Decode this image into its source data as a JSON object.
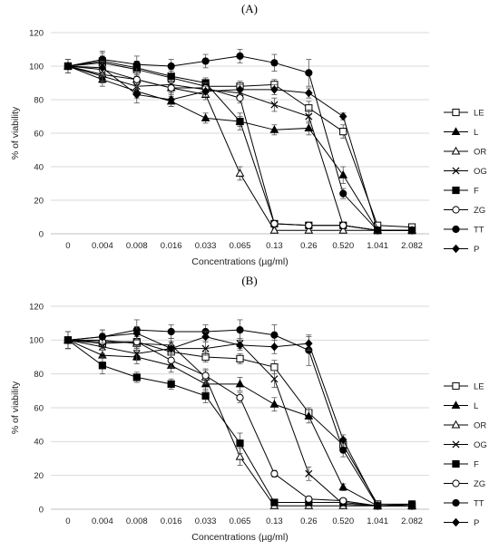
{
  "chart_data": [
    {
      "type": "line",
      "panel_label": "(A)",
      "xlabel": "Concentrations (µg/ml)",
      "ylabel": "% of viability",
      "categories": [
        "0",
        "0.004",
        "0.008",
        "0.016",
        "0.033",
        "0.065",
        "0.13",
        "0.26",
        "0.520",
        "1.041",
        "2.082"
      ],
      "ylim": [
        0,
        120
      ],
      "yticks": [
        0,
        20,
        40,
        60,
        80,
        100,
        120
      ],
      "grid": "horizontal",
      "legend": "right",
      "series": [
        {
          "name": "LE",
          "marker": "open-square",
          "values": [
            100,
            102,
            98,
            93,
            88,
            88,
            89,
            75,
            61,
            5,
            4
          ],
          "errors": [
            4,
            4,
            4,
            4,
            3,
            3,
            3,
            4,
            4,
            1,
            1
          ]
        },
        {
          "name": "L",
          "marker": "filled-triangle",
          "values": [
            100,
            92,
            85,
            79,
            69,
            67,
            62,
            63,
            35,
            2,
            2
          ],
          "errors": [
            4,
            4,
            4,
            3,
            3,
            3,
            3,
            4,
            5,
            1,
            1
          ]
        },
        {
          "name": "OR",
          "marker": "open-triangle",
          "values": [
            100,
            95,
            92,
            87,
            83,
            36,
            2,
            2,
            2,
            2,
            2
          ],
          "errors": [
            4,
            4,
            3,
            3,
            3,
            4,
            1,
            1,
            1,
            1,
            1
          ]
        },
        {
          "name": "OG",
          "marker": "x",
          "values": [
            100,
            94,
            88,
            89,
            86,
            84,
            77,
            70,
            5,
            2,
            2
          ],
          "errors": [
            4,
            4,
            4,
            4,
            3,
            3,
            4,
            4,
            1,
            1,
            1
          ]
        },
        {
          "name": "F",
          "marker": "filled-square",
          "values": [
            100,
            103,
            99,
            94,
            90,
            67,
            6,
            5,
            5,
            2,
            2
          ],
          "errors": [
            4,
            5,
            4,
            4,
            3,
            5,
            1,
            1,
            1,
            1,
            1
          ]
        },
        {
          "name": "ZG",
          "marker": "open-circle",
          "values": [
            100,
            98,
            92,
            87,
            87,
            81,
            6,
            5,
            5,
            2,
            2
          ],
          "errors": [
            4,
            4,
            4,
            4,
            3,
            3,
            1,
            1,
            1,
            1,
            1
          ]
        },
        {
          "name": "TT",
          "marker": "filled-circle",
          "values": [
            100,
            104,
            101,
            100,
            103,
            106,
            102,
            96,
            24,
            2,
            2
          ],
          "errors": [
            4,
            5,
            5,
            4,
            4,
            4,
            5,
            8,
            3,
            1,
            1
          ]
        },
        {
          "name": "P",
          "marker": "filled-diamond",
          "values": [
            100,
            99,
            83,
            80,
            85,
            86,
            86,
            84,
            70,
            2,
            2
          ],
          "errors": [
            4,
            4,
            5,
            4,
            3,
            3,
            3,
            3,
            2,
            1,
            1
          ]
        }
      ]
    },
    {
      "type": "line",
      "panel_label": "(B)",
      "xlabel": "Concentrations (µg/ml)",
      "ylabel": "% of viability",
      "categories": [
        "0",
        "0.004",
        "0.008",
        "0.016",
        "0.033",
        "0.065",
        "0.13",
        "0.26",
        "0.520",
        "1.041",
        "2.082"
      ],
      "ylim": [
        0,
        120
      ],
      "yticks": [
        0,
        20,
        40,
        60,
        80,
        100,
        120
      ],
      "grid": "horizontal",
      "legend": "right",
      "series": [
        {
          "name": "LE",
          "marker": "open-square",
          "values": [
            100,
            98,
            99,
            93,
            90,
            89,
            84,
            57,
            38,
            3,
            3
          ],
          "errors": [
            5,
            4,
            4,
            4,
            3,
            3,
            4,
            3,
            4,
            1,
            1
          ]
        },
        {
          "name": "L",
          "marker": "filled-triangle",
          "values": [
            100,
            91,
            90,
            85,
            74,
            74,
            62,
            55,
            13,
            2,
            2
          ],
          "errors": [
            5,
            4,
            4,
            4,
            4,
            4,
            4,
            4,
            2,
            1,
            1
          ]
        },
        {
          "name": "OR",
          "marker": "open-triangle",
          "values": [
            100,
            100,
            98,
            97,
            78,
            31,
            2,
            2,
            2,
            2,
            2
          ],
          "errors": [
            5,
            4,
            4,
            4,
            4,
            5,
            1,
            1,
            1,
            1,
            1
          ]
        },
        {
          "name": "OG",
          "marker": "x",
          "values": [
            100,
            96,
            92,
            95,
            95,
            98,
            77,
            21,
            3,
            2,
            2
          ],
          "errors": [
            5,
            4,
            4,
            4,
            4,
            3,
            5,
            4,
            1,
            1,
            1
          ]
        },
        {
          "name": "F",
          "marker": "filled-square",
          "values": [
            100,
            85,
            78,
            74,
            67,
            39,
            4,
            4,
            4,
            2,
            2
          ],
          "errors": [
            5,
            5,
            3,
            3,
            4,
            6,
            1,
            1,
            1,
            1,
            1
          ]
        },
        {
          "name": "ZG",
          "marker": "open-circle",
          "values": [
            100,
            99,
            99,
            88,
            79,
            66,
            21,
            6,
            5,
            2,
            2
          ],
          "errors": [
            5,
            4,
            4,
            4,
            4,
            3,
            2,
            1,
            1,
            1,
            1
          ]
        },
        {
          "name": "TT",
          "marker": "filled-circle",
          "values": [
            100,
            102,
            106,
            105,
            105,
            106,
            103,
            94,
            35,
            2,
            3
          ],
          "errors": [
            5,
            4,
            6,
            4,
            4,
            6,
            6,
            9,
            4,
            1,
            1
          ]
        },
        {
          "name": "P",
          "marker": "filled-diamond",
          "values": [
            100,
            102,
            104,
            95,
            102,
            97,
            96,
            98,
            41,
            2,
            2
          ],
          "errors": [
            5,
            4,
            4,
            4,
            3,
            3,
            4,
            4,
            3,
            1,
            1
          ]
        }
      ]
    }
  ]
}
